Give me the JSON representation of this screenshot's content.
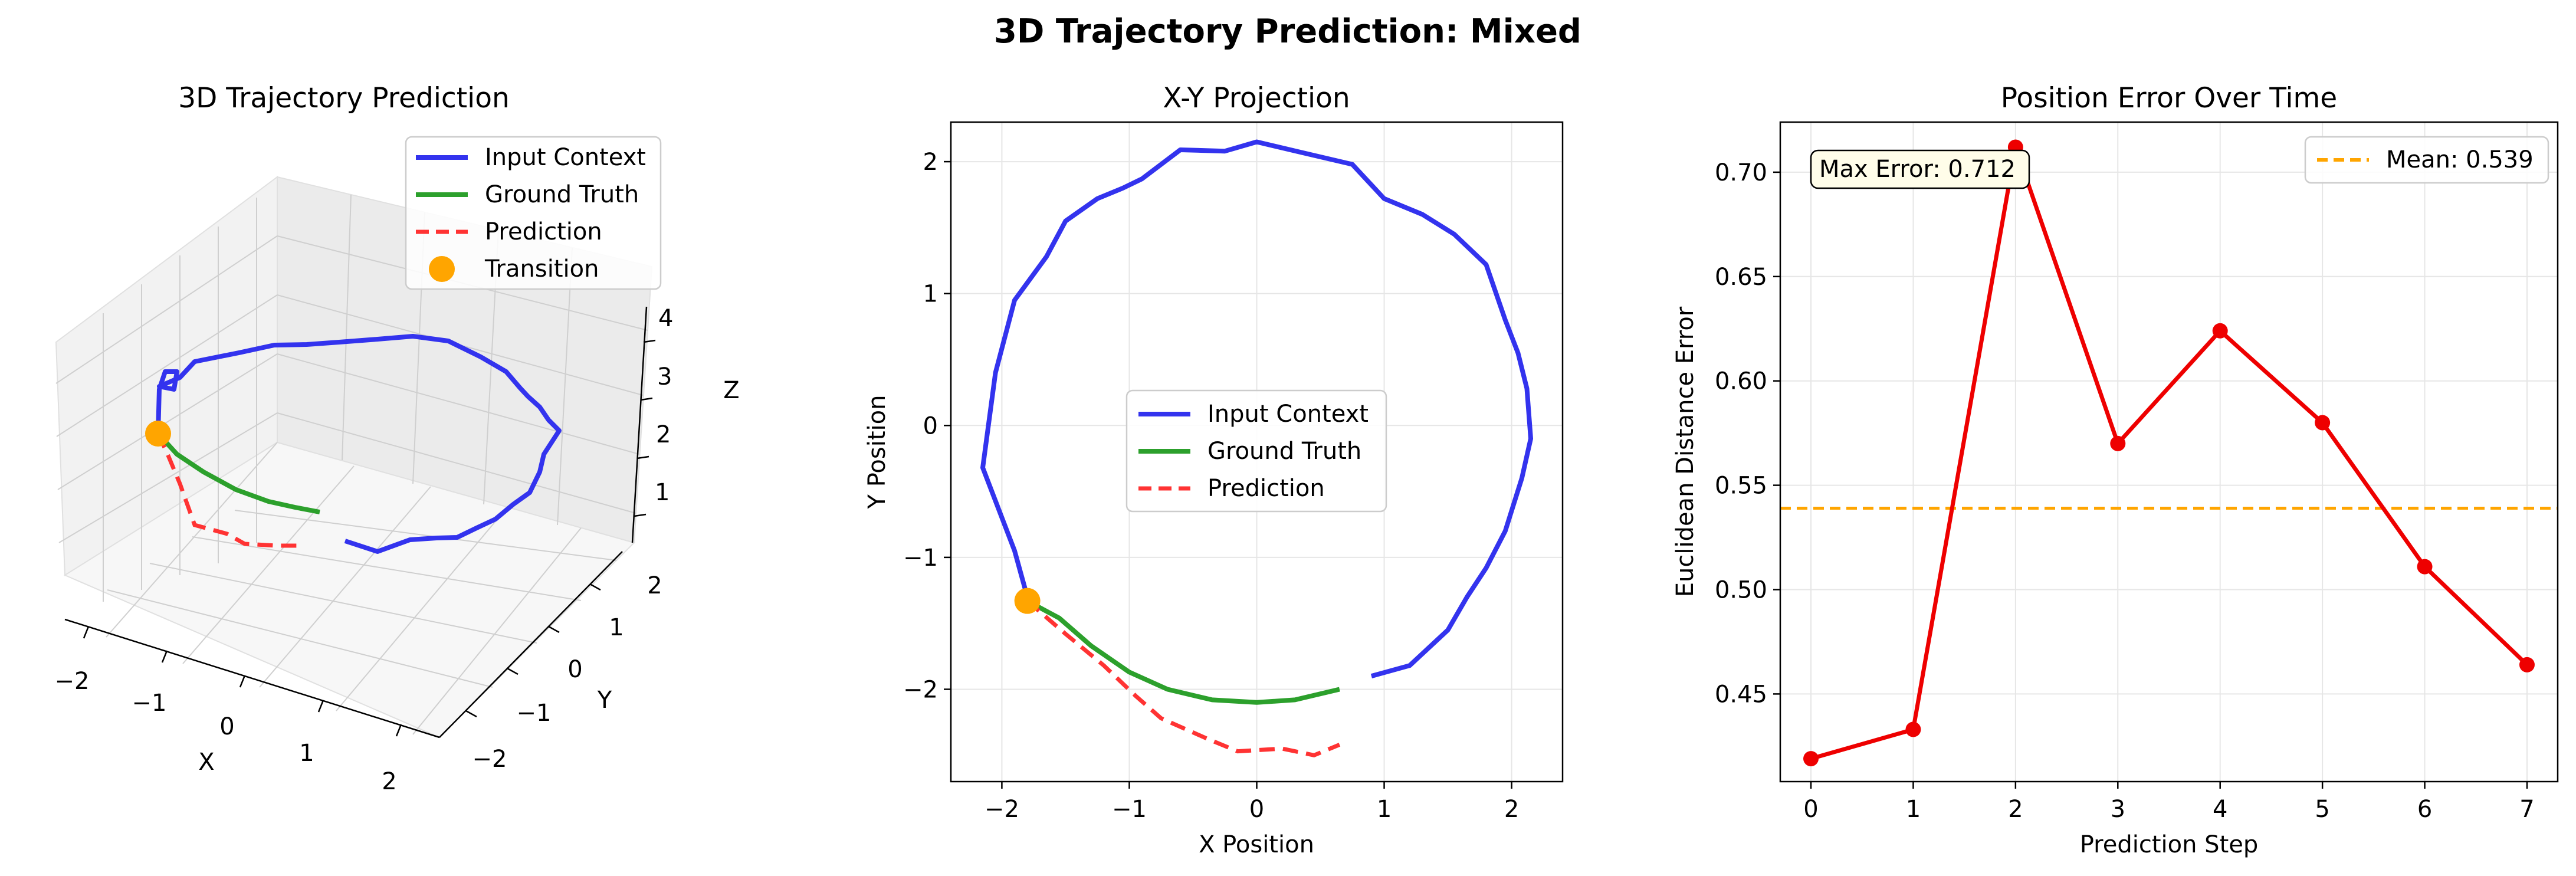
{
  "suptitle": "3D Trajectory Prediction: Mixed",
  "colors": {
    "input": "#3333ee",
    "truth": "#2ca02c",
    "pred": "#ff3333",
    "transition": "#ffa500",
    "error": "#ee0000",
    "mean": "#ffa500"
  },
  "chart_data": [
    {
      "type": "line3d",
      "title": "3D Trajectory Prediction",
      "xlabel": "X",
      "ylabel": "Y",
      "zlabel": "Z",
      "xticks": [
        "−2",
        "−1",
        "0",
        "1",
        "2"
      ],
      "yticks": [
        "−2",
        "−1",
        "0",
        "1",
        "2"
      ],
      "zticks": [
        "1",
        "2",
        "3",
        "4"
      ],
      "legend": [
        "Input Context",
        "Ground Truth",
        "Prediction",
        "Transition"
      ],
      "legend_position": "top-right"
    },
    {
      "type": "line",
      "title": "X-Y Projection",
      "xlabel": "X Position",
      "ylabel": "Y Position",
      "xlim": [
        -2.4,
        2.4
      ],
      "ylim": [
        -2.7,
        2.3
      ],
      "xticks": [
        "−2",
        "−1",
        "0",
        "1",
        "2"
      ],
      "yticks": [
        "−2",
        "−1",
        "0",
        "1",
        "2"
      ],
      "grid": true,
      "legend_position": "center",
      "series": [
        {
          "name": "Input Context",
          "style": "solid",
          "points": [
            [
              0.9,
              -1.9
            ],
            [
              1.2,
              -1.82
            ],
            [
              1.5,
              -1.55
            ],
            [
              1.65,
              -1.3
            ],
            [
              1.8,
              -1.08
            ],
            [
              1.95,
              -0.8
            ],
            [
              2.08,
              -0.4
            ],
            [
              2.15,
              -0.1
            ],
            [
              2.12,
              0.28
            ],
            [
              2.05,
              0.55
            ],
            [
              1.95,
              0.8
            ],
            [
              1.8,
              1.22
            ],
            [
              1.55,
              1.45
            ],
            [
              1.3,
              1.6
            ],
            [
              1.0,
              1.72
            ],
            [
              0.75,
              1.98
            ],
            [
              0.35,
              2.07
            ],
            [
              0.0,
              2.15
            ],
            [
              -0.25,
              2.08
            ],
            [
              -0.6,
              2.09
            ],
            [
              -0.9,
              1.87
            ],
            [
              -1.05,
              1.8
            ],
            [
              -1.25,
              1.72
            ],
            [
              -1.5,
              1.55
            ],
            [
              -1.65,
              1.28
            ],
            [
              -1.9,
              0.95
            ],
            [
              -2.05,
              0.4
            ],
            [
              -2.15,
              -0.32
            ],
            [
              -1.9,
              -0.95
            ],
            [
              -1.8,
              -1.3
            ]
          ]
        },
        {
          "name": "Ground Truth",
          "style": "solid",
          "points": [
            [
              -1.8,
              -1.33
            ],
            [
              -1.55,
              -1.46
            ],
            [
              -1.3,
              -1.67
            ],
            [
              -1.0,
              -1.87
            ],
            [
              -0.7,
              -2.0
            ],
            [
              -0.35,
              -2.08
            ],
            [
              0.0,
              -2.1
            ],
            [
              0.3,
              -2.08
            ],
            [
              0.65,
              -2.0
            ]
          ]
        },
        {
          "name": "Prediction",
          "style": "dashed",
          "points": [
            [
              -1.8,
              -1.33
            ],
            [
              -1.5,
              -1.58
            ],
            [
              -1.2,
              -1.82
            ],
            [
              -0.95,
              -2.05
            ],
            [
              -0.75,
              -2.22
            ],
            [
              -0.4,
              -2.37
            ],
            [
              -0.15,
              -2.47
            ],
            [
              0.2,
              -2.45
            ],
            [
              0.45,
              -2.5
            ],
            [
              0.65,
              -2.42
            ]
          ]
        },
        {
          "name": "Transition",
          "style": "marker",
          "points": [
            [
              -1.8,
              -1.33
            ]
          ]
        }
      ]
    },
    {
      "type": "line",
      "title": "Position Error Over Time",
      "xlabel": "Prediction Step",
      "ylabel": "Euclidean Distance Error",
      "xlim": [
        -0.3,
        7.3
      ],
      "ylim": [
        0.408,
        0.724
      ],
      "xticks": [
        "0",
        "1",
        "2",
        "3",
        "4",
        "5",
        "6",
        "7"
      ],
      "yticks": [
        "0.45",
        "0.50",
        "0.55",
        "0.60",
        "0.65",
        "0.70"
      ],
      "grid": true,
      "x": [
        0,
        1,
        2,
        3,
        4,
        5,
        6,
        7
      ],
      "values": [
        0.419,
        0.433,
        0.712,
        0.57,
        0.624,
        0.58,
        0.511,
        0.464
      ],
      "mean": 0.539,
      "mean_label": "Mean: 0.539",
      "annotation": "Max Error: 0.712",
      "legend_position": "top-right"
    }
  ]
}
